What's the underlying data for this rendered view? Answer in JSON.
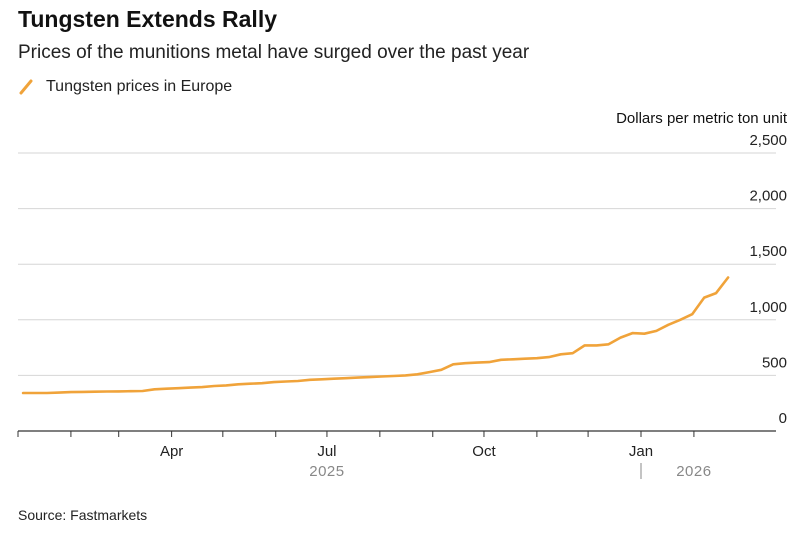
{
  "header": {
    "title": "Tungsten Extends Rally",
    "subtitle": "Prices of the munitions metal have surged over the past year"
  },
  "legend": {
    "label": "Tungsten prices in Europe"
  },
  "footer": {
    "source": "Source: Fastmarkets"
  },
  "colors": {
    "series": "#f0a33a",
    "grid": "#d6d6d6",
    "axis": "#333333",
    "year": "#888888"
  },
  "chart_data": {
    "type": "line",
    "title": "Tungsten Extends Rally",
    "subtitle": "Prices of the munitions metal have surged over the past year",
    "ylabel": "Dollars per metric ton unit",
    "ylim": [
      0,
      2500
    ],
    "yticks": [
      0,
      500,
      1000,
      1500,
      2000,
      2500
    ],
    "ytick_labels": [
      "0",
      "500",
      "1,000",
      "1,500",
      "2,000",
      "2,500"
    ],
    "xlim": [
      "2025-01-01",
      "2026-02-28"
    ],
    "xticks": [
      {
        "date": "2025-04-01",
        "label": "Apr"
      },
      {
        "date": "2025-07-01",
        "label": "Jul"
      },
      {
        "date": "2025-10-01",
        "label": "Oct"
      },
      {
        "date": "2026-01-01",
        "label": "Jan"
      }
    ],
    "year_labels": [
      {
        "label": "2025",
        "date": "2025-07-01"
      },
      {
        "label": "2026",
        "date": "2026-02-01"
      }
    ],
    "year_divider": "2026-01-01",
    "grid": true,
    "legend_position": "top-left",
    "series": [
      {
        "name": "Tungsten prices in Europe",
        "x": [
          "2025-01-04",
          "2025-01-11",
          "2025-01-18",
          "2025-01-25",
          "2025-02-01",
          "2025-02-08",
          "2025-02-15",
          "2025-02-22",
          "2025-03-01",
          "2025-03-08",
          "2025-03-15",
          "2025-03-22",
          "2025-03-29",
          "2025-04-05",
          "2025-04-12",
          "2025-04-19",
          "2025-04-26",
          "2025-05-03",
          "2025-05-10",
          "2025-05-17",
          "2025-05-24",
          "2025-05-31",
          "2025-06-07",
          "2025-06-14",
          "2025-06-21",
          "2025-06-28",
          "2025-07-05",
          "2025-07-12",
          "2025-07-19",
          "2025-07-26",
          "2025-08-02",
          "2025-08-09",
          "2025-08-16",
          "2025-08-23",
          "2025-08-30",
          "2025-09-06",
          "2025-09-13",
          "2025-09-20",
          "2025-09-27",
          "2025-10-04",
          "2025-10-11",
          "2025-10-18",
          "2025-10-25",
          "2025-11-01",
          "2025-11-08",
          "2025-11-15",
          "2025-11-22",
          "2025-11-29",
          "2025-12-06",
          "2025-12-13",
          "2025-12-20",
          "2025-12-27",
          "2026-01-03",
          "2026-01-10",
          "2026-01-17",
          "2026-01-24",
          "2026-01-31",
          "2026-02-07",
          "2026-02-14",
          "2026-02-21"
        ],
        "values": [
          342,
          342,
          342,
          345,
          350,
          352,
          353,
          355,
          356,
          358,
          360,
          375,
          380,
          385,
          390,
          395,
          405,
          410,
          420,
          425,
          430,
          440,
          445,
          450,
          460,
          465,
          470,
          475,
          480,
          485,
          490,
          495,
          500,
          510,
          530,
          550,
          600,
          610,
          615,
          620,
          640,
          645,
          650,
          655,
          665,
          690,
          700,
          770,
          770,
          780,
          840,
          880,
          875,
          900,
          955,
          1000,
          1050,
          1200,
          1240,
          1380
        ]
      }
    ]
  }
}
